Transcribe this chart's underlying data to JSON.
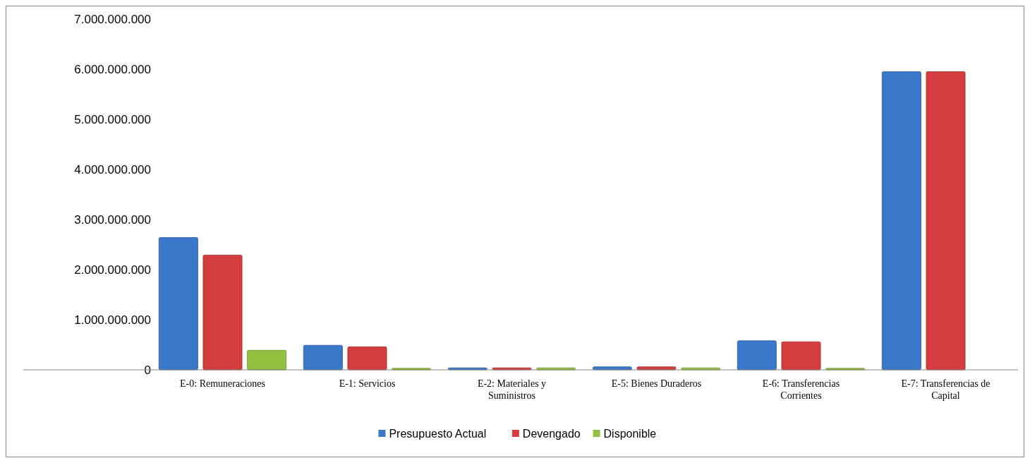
{
  "chart_data": {
    "type": "bar",
    "categories": [
      "E-0: Remuneraciones",
      "E-1: Servicios",
      "E-2: Materiales y Suministros",
      "E-5: Bienes Duraderos",
      "E-6: Transferencias Corrientes",
      "E-7: Transferencias de Capital"
    ],
    "series": [
      {
        "name": "Presupuesto Actual",
        "color": "#3a78c9",
        "values": [
          2640000000,
          490000000,
          40000000,
          60000000,
          580000000,
          5950000000
        ]
      },
      {
        "name": "Devengado",
        "color": "#d33d3d",
        "values": [
          2290000000,
          460000000,
          40000000,
          60000000,
          560000000,
          5950000000
        ]
      },
      {
        "name": "Disponible",
        "color": "#93c13f",
        "values": [
          390000000,
          30000000,
          40000000,
          40000000,
          30000000,
          null
        ]
      }
    ],
    "ylim": [
      0,
      7000000000
    ],
    "yticks": [
      {
        "value": 0,
        "label": "0"
      },
      {
        "value": 1000000000,
        "label": "1.000.000.000"
      },
      {
        "value": 2000000000,
        "label": "2.000.000.000"
      },
      {
        "value": 3000000000,
        "label": "3.000.000.000"
      },
      {
        "value": 4000000000,
        "label": "4.000.000.000"
      },
      {
        "value": 5000000000,
        "label": "5.000.000.000"
      },
      {
        "value": 6000000000,
        "label": "6.000.000.000"
      },
      {
        "value": 7000000000,
        "label": "7.000.000.000"
      }
    ],
    "grid": false,
    "legend": "bottom"
  }
}
